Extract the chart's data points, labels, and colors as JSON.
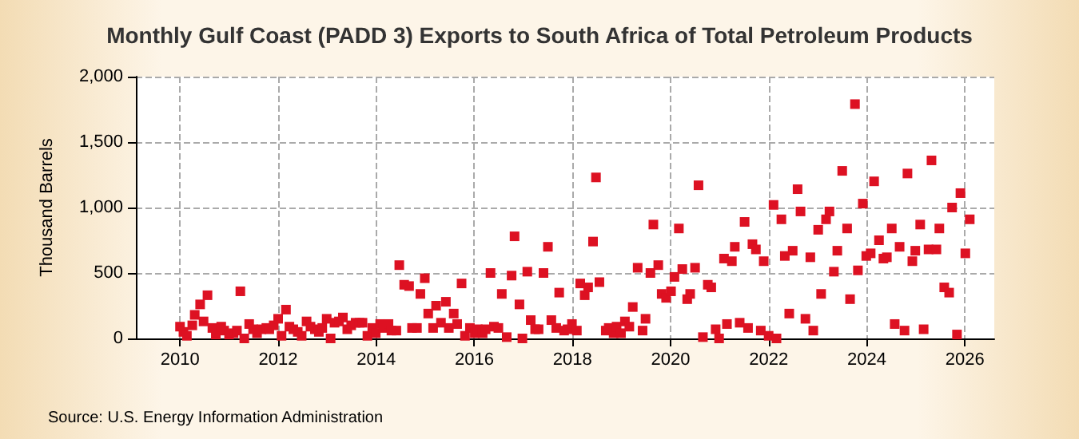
{
  "chart_data": {
    "type": "scatter",
    "title": "Monthly Gulf Coast (PADD 3) Exports to South Africa of Total Petroleum Products",
    "ylabel": "Thousand Barrels",
    "annotations": [
      "Source: U.S. Energy Information Administration"
    ],
    "marker": "square",
    "grid": true,
    "xlim": [
      2009.1,
      2026.6
    ],
    "xticks": [
      2010,
      2012,
      2014,
      2016,
      2018,
      2020,
      2022,
      2024,
      2026
    ],
    "ylim": [
      0,
      2000
    ],
    "yticks": [
      0,
      500,
      {
        "value": 1000,
        "label": "1,000"
      },
      {
        "value": 1500,
        "label": "1,500"
      },
      {
        "value": 2000,
        "label": "2,000"
      }
    ],
    "series": [
      {
        "color": "#dd1122",
        "x": [
          2010.0,
          2010.07,
          2010.14,
          2010.25,
          2010.3,
          2010.41,
          2010.48,
          2010.56,
          2010.66,
          2010.73,
          2010.84,
          2010.9,
          2011.0,
          2011.09,
          2011.16,
          2011.23,
          2011.31,
          2011.41,
          2011.49,
          2011.57,
          2011.66,
          2011.76,
          2011.82,
          2011.91,
          2012.0,
          2012.07,
          2012.16,
          2012.23,
          2012.31,
          2012.4,
          2012.48,
          2012.58,
          2012.66,
          2012.75,
          2012.83,
          2012.9,
          2012.99,
          2013.07,
          2013.15,
          2013.24,
          2013.32,
          2013.41,
          2013.49,
          2013.58,
          2013.66,
          2013.72,
          2013.82,
          2013.92,
          2013.99,
          2014.08,
          2014.15,
          2014.25,
          2014.31,
          2014.41,
          2014.47,
          2014.57,
          2014.67,
          2014.73,
          2014.83,
          2014.9,
          2014.99,
          2015.06,
          2015.16,
          2015.22,
          2015.32,
          2015.42,
          2015.48,
          2015.58,
          2015.65,
          2015.74,
          2015.81,
          2015.91,
          2016.01,
          2016.07,
          2016.17,
          2016.23,
          2016.33,
          2016.4,
          2016.49,
          2016.56,
          2016.66,
          2016.76,
          2016.82,
          2016.92,
          2016.98,
          2017.08,
          2017.15,
          2017.24,
          2017.31,
          2017.41,
          2017.5,
          2017.57,
          2017.67,
          2017.73,
          2017.83,
          2017.9,
          2017.99,
          2018.09,
          2018.16,
          2018.25,
          2018.32,
          2018.42,
          2018.48,
          2018.55,
          2018.68,
          2018.74,
          2018.84,
          2018.9,
          2018.99,
          2019.07,
          2019.16,
          2019.23,
          2019.33,
          2019.43,
          2019.49,
          2019.59,
          2019.65,
          2019.75,
          2019.82,
          2019.91,
          2020.01,
          2020.08,
          2020.17,
          2020.24,
          2020.34,
          2020.4,
          2020.5,
          2020.57,
          2020.66,
          2020.76,
          2020.83,
          2020.92,
          2020.99,
          2021.09,
          2021.15,
          2021.25,
          2021.31,
          2021.41,
          2021.51,
          2021.58,
          2021.67,
          2021.74,
          2021.84,
          2021.9,
          2022.0,
          2022.1,
          2022.16,
          2022.26,
          2022.33,
          2022.42,
          2022.49,
          2022.59,
          2022.65,
          2022.75,
          2022.85,
          2022.91,
          2023.01,
          2023.07,
          2023.17,
          2023.24,
          2023.33,
          2023.4,
          2023.5,
          2023.6,
          2023.66,
          2023.76,
          2023.82,
          2023.92,
          2023.99,
          2024.08,
          2024.15,
          2024.25,
          2024.34,
          2024.41,
          2024.51,
          2024.57,
          2024.67,
          2024.77,
          2024.83,
          2024.93,
          2024.99,
          2025.09,
          2025.16,
          2025.26,
          2025.32,
          2025.42,
          2025.48,
          2025.58,
          2025.68,
          2025.74,
          2025.84,
          2025.91,
          2026.01,
          2026.1
        ],
        "values": [
          90,
          50,
          20,
          100,
          180,
          260,
          130,
          330,
          80,
          30,
          90,
          60,
          30,
          40,
          60,
          360,
          0,
          110,
          70,
          40,
          70,
          80,
          70,
          100,
          150,
          20,
          220,
          90,
          70,
          50,
          20,
          130,
          90,
          70,
          50,
          80,
          150,
          0,
          120,
          130,
          160,
          70,
          100,
          120,
          120,
          120,
          20,
          80,
          40,
          110,
          80,
          110,
          60,
          60,
          560,
          410,
          400,
          80,
          80,
          340,
          460,
          190,
          80,
          250,
          120,
          280,
          80,
          190,
          110,
          420,
          20,
          80,
          40,
          70,
          40,
          70,
          500,
          90,
          80,
          340,
          10,
          480,
          780,
          260,
          0,
          510,
          140,
          70,
          70,
          500,
          700,
          140,
          80,
          350,
          60,
          70,
          110,
          60,
          420,
          330,
          390,
          740,
          1230,
          430,
          60,
          80,
          40,
          90,
          40,
          130,
          90,
          240,
          540,
          60,
          150,
          500,
          870,
          560,
          340,
          310,
          360,
          470,
          840,
          530,
          300,
          340,
          540,
          1170,
          10,
          410,
          390,
          70,
          0,
          610,
          110,
          590,
          700,
          120,
          890,
          80,
          720,
          680,
          60,
          590,
          20,
          1020,
          0,
          910,
          630,
          190,
          670,
          1140,
          970,
          150,
          620,
          60,
          830,
          340,
          910,
          970,
          510,
          670,
          1280,
          840,
          300,
          1790,
          520,
          1030,
          630,
          650,
          1200,
          750,
          610,
          620,
          840,
          110,
          700,
          60,
          1260,
          590,
          670,
          870,
          70,
          680,
          1360,
          680,
          840,
          390,
          350,
          1000,
          30,
          1110,
          650,
          910
        ]
      }
    ]
  }
}
